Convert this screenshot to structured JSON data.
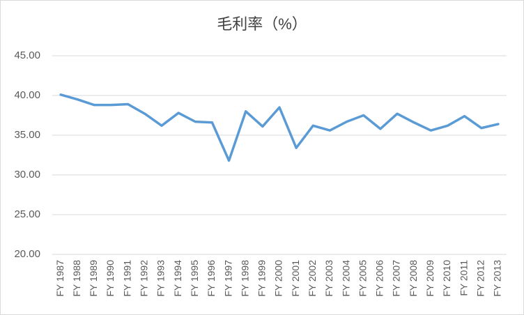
{
  "chart_data": {
    "type": "line",
    "title": "毛利率（%）",
    "categories": [
      "FY 1987",
      "FY 1988",
      "FY 1989",
      "FY 1990",
      "FY 1991",
      "FY 1992",
      "FY 1993",
      "FY 1994",
      "FY 1995",
      "FY 1996",
      "FY 1997",
      "FY 1998",
      "FY 1999",
      "FY 2000",
      "FY 2001",
      "FY 2002",
      "FY 2003",
      "FY 2004",
      "FY 2005",
      "FY 2006",
      "FY 2007",
      "FY 2008",
      "FY 2009",
      "FY 2010",
      "FY 2011",
      "FY 2012",
      "FY 2013"
    ],
    "values": [
      40.1,
      39.5,
      38.8,
      38.8,
      38.9,
      37.7,
      36.2,
      37.8,
      36.7,
      36.6,
      31.8,
      38.0,
      36.1,
      38.5,
      33.4,
      36.2,
      35.6,
      36.7,
      37.5,
      35.8,
      37.7,
      36.6,
      35.6,
      36.2,
      37.4,
      35.9,
      36.4
    ],
    "color": "#5b9bd5",
    "ylim": [
      20,
      45
    ],
    "yticks": [
      {
        "value": 20,
        "label": "20.00"
      },
      {
        "value": 25,
        "label": "25.00"
      },
      {
        "value": 30,
        "label": "30.00"
      },
      {
        "value": 35,
        "label": "35.00"
      },
      {
        "value": 40,
        "label": "40.00"
      },
      {
        "value": 45,
        "label": "45.00"
      }
    ],
    "grid": true
  }
}
